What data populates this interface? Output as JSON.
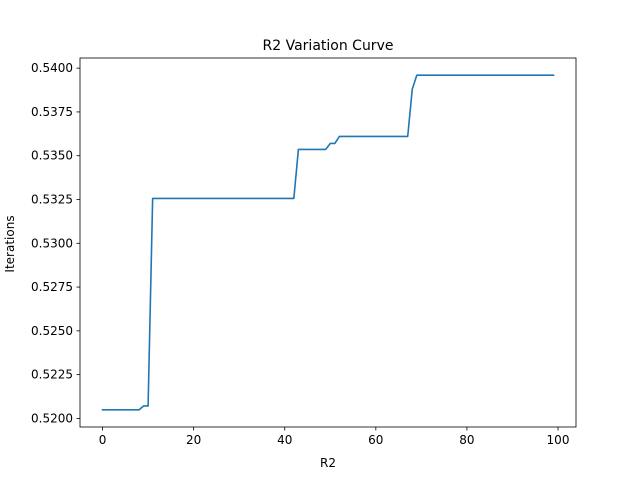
{
  "chart_data": {
    "type": "line",
    "title": "R2 Variation Curve",
    "xlabel": "R2",
    "ylabel": "Iterations",
    "xlim": [
      -4.95,
      103.95
    ],
    "ylim": [
      0.51951,
      0.54058
    ],
    "xticks": [
      0,
      20,
      40,
      60,
      80,
      100
    ],
    "xtick_labels": [
      "0",
      "20",
      "40",
      "60",
      "80",
      "100"
    ],
    "yticks": [
      0.52,
      0.5225,
      0.525,
      0.5275,
      0.53,
      0.5325,
      0.535,
      0.5375,
      0.54
    ],
    "ytick_labels": [
      "0.5200",
      "0.5225",
      "0.5250",
      "0.5275",
      "0.5300",
      "0.5325",
      "0.5350",
      "0.5375",
      "0.5400"
    ],
    "grid": false,
    "series": [
      {
        "color": "#1f77b4",
        "x": [
          0,
          8,
          9,
          10,
          11,
          42,
          43,
          49,
          50,
          51,
          52,
          67,
          68,
          69,
          99
        ],
        "y": [
          0.52049,
          0.52049,
          0.52071,
          0.52071,
          0.53256,
          0.53256,
          0.53536,
          0.53536,
          0.5357,
          0.5357,
          0.5361,
          0.5361,
          0.5388,
          0.5396,
          0.5396
        ]
      }
    ]
  }
}
